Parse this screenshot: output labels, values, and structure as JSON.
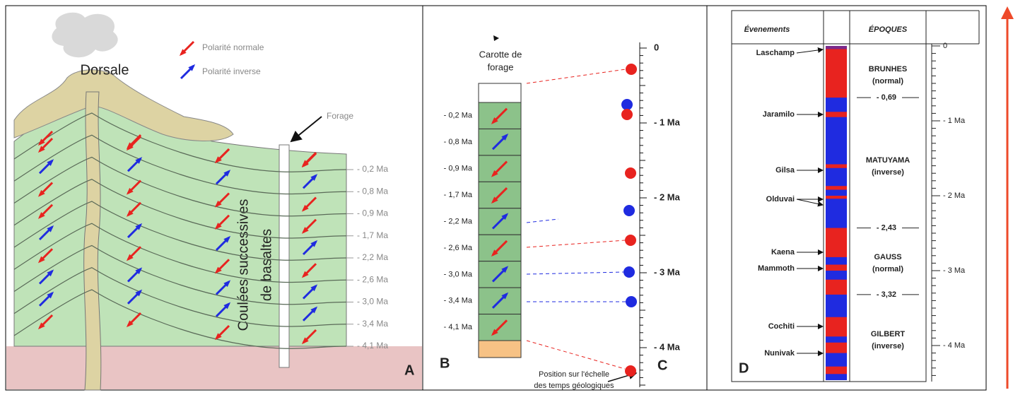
{
  "colors": {
    "normal": "#e8231f",
    "inverse": "#1f2be0"
  },
  "panel_a": {
    "letter": "A",
    "legend": {
      "normal": "Polarité normale",
      "inverse": "Polarité inverse"
    },
    "dorsale": "Dorsale",
    "forage": "Forage",
    "caption": [
      "Coulées successives",
      "de basaltes"
    ],
    "layers": [
      "- 0,2 Ma",
      "- 0,8 Ma",
      "- 0,9 Ma",
      "- 1,7 Ma",
      "- 2,2 Ma",
      "- 2,6 Ma",
      "- 3,0 Ma",
      "- 3,4 Ma",
      "- 4,1 Ma"
    ]
  },
  "panel_b": {
    "letter": "B",
    "title": [
      "Carotte de",
      "forage"
    ],
    "cells": [
      "- 0,2 Ma",
      "- 0,8 Ma",
      "- 0,9 Ma",
      "- 1,7 Ma",
      "- 2,2 Ma",
      "- 2,6 Ma",
      "- 3,0 Ma",
      "- 3,4 Ma",
      "- 4,1 Ma"
    ],
    "arrow_colors": [
      "#e8231f",
      "#1f2be0",
      "#e8231f",
      "#e8231f",
      "#1f2be0",
      "#e8231f",
      "#1f2be0",
      "#1f2be0",
      "#e8231f"
    ]
  },
  "panel_c": {
    "letter": "C",
    "ticks": [
      "0",
      "- 1 Ma",
      "- 2 Ma",
      "- 3 Ma",
      "- 4 Ma"
    ],
    "caption": [
      "Position sur l'échelle",
      "des temps géologiques"
    ]
  },
  "panel_d": {
    "letter": "D",
    "headers": [
      "Évenements",
      "ÉPOQUES"
    ],
    "events": [
      "Laschamp",
      "Jaramilo",
      "Gilsa",
      "Olduvai",
      "Kaena",
      "Mammoth",
      "Cochiti",
      "Nunivak"
    ],
    "epochs": [
      [
        "BRUNHES",
        "(normal)"
      ],
      [
        "MATUYAMA",
        "(inverse)"
      ],
      [
        "GAUSS",
        "(normal)"
      ],
      [
        "GILBERT",
        "(inverse)"
      ]
    ],
    "boundaries": [
      "- 0,69",
      "- 2,43",
      "- 3,32"
    ],
    "ticks": [
      "0",
      "- 1 Ma",
      "- 2 Ma",
      "- 3 Ma",
      "- 4 Ma"
    ]
  }
}
